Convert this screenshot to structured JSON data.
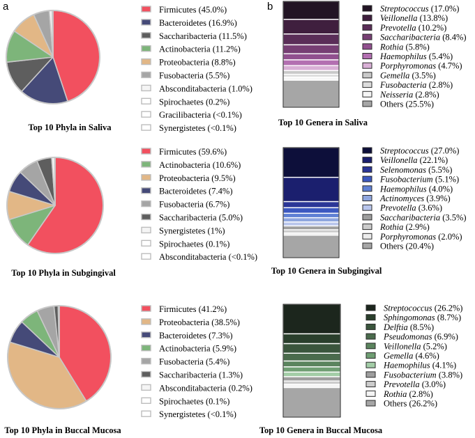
{
  "panel_labels": {
    "a": "a",
    "b": "b"
  },
  "chart_data": [
    {
      "type": "pie",
      "title": "Top 10 Phyla in Saliva",
      "slices": [
        {
          "label": "Firmicutes",
          "value": 45.0,
          "legend": "Firmicutes (45.0%)",
          "color": "#f2505f"
        },
        {
          "label": "Bacteroidetes",
          "value": 16.9,
          "legend": "Bacteroidetes (16.9%)",
          "color": "#454a78"
        },
        {
          "label": "Saccharibacteria",
          "value": 11.5,
          "legend": "Saccharibacteria (11.5%)",
          "color": "#5e5e5e"
        },
        {
          "label": "Actinobacteria",
          "value": 11.2,
          "legend": "Actinobacteria (11.2%)",
          "color": "#7db57a"
        },
        {
          "label": "Proteobacteria",
          "value": 8.8,
          "legend": "Proteobacteria (8.8%)",
          "color": "#e2b786"
        },
        {
          "label": "Fusobacteria",
          "value": 5.5,
          "legend": "Fusobacteria (5.5%)",
          "color": "#a5a5a5"
        },
        {
          "label": "Absconditabacteria",
          "value": 1.0,
          "legend": "Absconditabacteria (1.0%)",
          "color": "#f5f5f5"
        },
        {
          "label": "Spirochaetes",
          "value": 0.2,
          "legend": "Spirochaetes (0.2%)",
          "color": "#ffffff"
        },
        {
          "label": "Gracilibacteria",
          "value": 0.05,
          "legend": "Gracilibacteria (<0.1%)",
          "color": "#ffffff"
        },
        {
          "label": "Synergistetes",
          "value": 0.05,
          "legend": "Synergistetes (<0.1%)",
          "color": "#ffffff"
        }
      ]
    },
    {
      "type": "pie",
      "title": "Top 10 Phyla in Subgingival",
      "slices": [
        {
          "label": "Firmicutes",
          "value": 59.6,
          "legend": "Firmicutes (59.6%)",
          "color": "#f2505f"
        },
        {
          "label": "Actinobacteria",
          "value": 10.6,
          "legend": "Actinobacteria (10.6%)",
          "color": "#7db57a"
        },
        {
          "label": "Proteobacteria",
          "value": 9.5,
          "legend": "Proteobacteria (9.5%)",
          "color": "#e2b786"
        },
        {
          "label": "Bacteroidetes",
          "value": 7.4,
          "legend": "Bacteroidetes (7.4%)",
          "color": "#454a78"
        },
        {
          "label": "Fusobacteria",
          "value": 6.7,
          "legend": "Fusobacteria (6.7%)",
          "color": "#a5a5a5"
        },
        {
          "label": "Saccharibacteria",
          "value": 5.0,
          "legend": "Saccharibacteria (5.0%)",
          "color": "#5e5e5e"
        },
        {
          "label": "Synergistetes",
          "value": 1.0,
          "legend": "Synergistetes (1%)",
          "color": "#f5f5f5"
        },
        {
          "label": "Spirochaetes",
          "value": 0.1,
          "legend": "Spirochaetes (0.1%)",
          "color": "#ffffff"
        },
        {
          "label": "Absconditabacteria",
          "value": 0.05,
          "legend": "Absconditabacteria (<0.1%)",
          "color": "#ffffff"
        }
      ]
    },
    {
      "type": "pie",
      "title": "Top 10 Phyla in Buccal Mucosa",
      "slices": [
        {
          "label": "Firmicutes",
          "value": 41.2,
          "legend": "Firmicutes (41.2%)",
          "color": "#f2505f"
        },
        {
          "label": "Proteobacteria",
          "value": 38.5,
          "legend": "Proteobacteria (38.5%)",
          "color": "#e2b786"
        },
        {
          "label": "Bacteroidetes",
          "value": 7.3,
          "legend": "Bacteroidetes (7.3%)",
          "color": "#454a78"
        },
        {
          "label": "Actinobacteria",
          "value": 5.9,
          "legend": "Actinobacteria (5.9%)",
          "color": "#7db57a"
        },
        {
          "label": "Fusobacteria",
          "value": 5.4,
          "legend": "Fusobacteria (5.4%)",
          "color": "#a5a5a5"
        },
        {
          "label": "Saccharibacteria",
          "value": 1.3,
          "legend": "Saccharibacteria (1.3%)",
          "color": "#5e5e5e"
        },
        {
          "label": "Absconditabacteria",
          "value": 0.2,
          "legend": "Absconditabacteria (0.2%)",
          "color": "#f5f5f5"
        },
        {
          "label": "Spirochaetes",
          "value": 0.1,
          "legend": "Spirochaetes (0.1%)",
          "color": "#ffffff"
        },
        {
          "label": "Synergistetes",
          "value": 0.05,
          "legend": "Synergistetes (<0.1%)",
          "color": "#ffffff"
        }
      ]
    },
    {
      "type": "stacked-bar",
      "title": "Top 10 Genera in Saliva",
      "segments": [
        {
          "name": "Streptococcus",
          "italic": true,
          "value": 17.0,
          "pct": "(17.0%)",
          "color": "#221424"
        },
        {
          "name": "Veillonella",
          "italic": true,
          "value": 13.8,
          "pct": "(13.8%)",
          "color": "#3f1f3e"
        },
        {
          "name": "Prevotella",
          "italic": true,
          "value": 10.2,
          "pct": "(10.2%)",
          "color": "#5a2e58"
        },
        {
          "name": "Saccharibacteria",
          "italic": true,
          "value": 8.4,
          "pct": "(8.4%)",
          "color": "#773f74"
        },
        {
          "name": "Rothia",
          "italic": true,
          "value": 5.8,
          "pct": "(5.8%)",
          "color": "#91508f"
        },
        {
          "name": "Haemophilus",
          "italic": true,
          "value": 5.4,
          "pct": "(5.4%)",
          "color": "#b36fb1"
        },
        {
          "name": "Porphyromonas",
          "italic": true,
          "value": 4.7,
          "pct": "(4.7%)",
          "color": "#d9b0d6"
        },
        {
          "name": "Gemella",
          "italic": true,
          "value": 3.5,
          "pct": "(3.5%)",
          "color": "#c9c9c9"
        },
        {
          "name": "Fusobacteria",
          "italic": true,
          "value": 2.8,
          "pct": "(2.8%)",
          "color": "#dcdcdc"
        },
        {
          "name": "Neisseria",
          "italic": true,
          "value": 2.8,
          "pct": "(2.8%)",
          "color": "#f6f6f6"
        },
        {
          "name": "Others",
          "italic": false,
          "value": 25.5,
          "pct": "(25.5%)",
          "color": "#a6a6a6"
        }
      ]
    },
    {
      "type": "stacked-bar",
      "title": "Top 10 Genera in Subgingival",
      "segments": [
        {
          "name": "Streptococcus",
          "italic": true,
          "value": 27.0,
          "pct": "(27.0%)",
          "color": "#0d0f3a"
        },
        {
          "name": "Veillonella",
          "italic": true,
          "value": 22.1,
          "pct": "(22.1%)",
          "color": "#1b1f6e"
        },
        {
          "name": "Selenomonas",
          "italic": true,
          "value": 5.5,
          "pct": "(5.5%)",
          "color": "#2b3697"
        },
        {
          "name": "Fusobacterium",
          "italic": true,
          "value": 5.1,
          "pct": "(5.1%)",
          "color": "#3c58c0"
        },
        {
          "name": "Haemophilus",
          "italic": true,
          "value": 4.0,
          "pct": "(4.0%)",
          "color": "#5f80d4"
        },
        {
          "name": "Actinomyces",
          "italic": true,
          "value": 3.9,
          "pct": "(3.9%)",
          "color": "#8fa6df"
        },
        {
          "name": "Prevotella",
          "italic": true,
          "value": 3.6,
          "pct": "(3.6%)",
          "color": "#b9c6ec"
        },
        {
          "name": "Saccharibacteria",
          "italic": true,
          "value": 3.5,
          "pct": "(3.5%)",
          "color": "#9e9e9e"
        },
        {
          "name": "Rothia",
          "italic": true,
          "value": 2.9,
          "pct": "(2.9%)",
          "color": "#cccccc"
        },
        {
          "name": "Porphyromonas",
          "italic": true,
          "value": 2.0,
          "pct": "(2.0%)",
          "color": "#ececec"
        },
        {
          "name": "Others",
          "italic": false,
          "value": 20.4,
          "pct": "(20.4%)",
          "color": "#a6a6a6"
        }
      ]
    },
    {
      "type": "stacked-bar",
      "title": "Top 10 Genera in Buccal Mucosa",
      "segments": [
        {
          "name": "Streptococcus",
          "italic": true,
          "value": 26.2,
          "pct": "(26.2%)",
          "color": "#1c261d"
        },
        {
          "name": "Sphingomonas",
          "italic": true,
          "value": 8.7,
          "pct": "(8.7%)",
          "color": "#2a3f2c"
        },
        {
          "name": "Delftia",
          "italic": true,
          "value": 8.5,
          "pct": "(8.5%)",
          "color": "#3a553c"
        },
        {
          "name": "Pseudomonas",
          "italic": true,
          "value": 6.9,
          "pct": "(6.9%)",
          "color": "#4a6b4c"
        },
        {
          "name": "Veillonella",
          "italic": true,
          "value": 5.2,
          "pct": "(5.2%)",
          "color": "#5b845e"
        },
        {
          "name": "Gemella",
          "italic": true,
          "value": 4.6,
          "pct": "(4.6%)",
          "color": "#6f9e73"
        },
        {
          "name": "Haemophilus",
          "italic": true,
          "value": 4.1,
          "pct": "(4.1%)",
          "color": "#a3cda7"
        },
        {
          "name": "Fusobacterium",
          "italic": true,
          "value": 3.8,
          "pct": "(3.8%)",
          "color": "#9e9e9e"
        },
        {
          "name": "Prevotella",
          "italic": true,
          "value": 3.0,
          "pct": "(3.0%)",
          "color": "#cccccc"
        },
        {
          "name": "Rothia",
          "italic": true,
          "value": 2.8,
          "pct": "(2.8%)",
          "color": "#f4f4f4"
        },
        {
          "name": "Others",
          "italic": false,
          "value": 26.2,
          "pct": "(26.2%)",
          "color": "#a6a6a6"
        }
      ]
    }
  ]
}
